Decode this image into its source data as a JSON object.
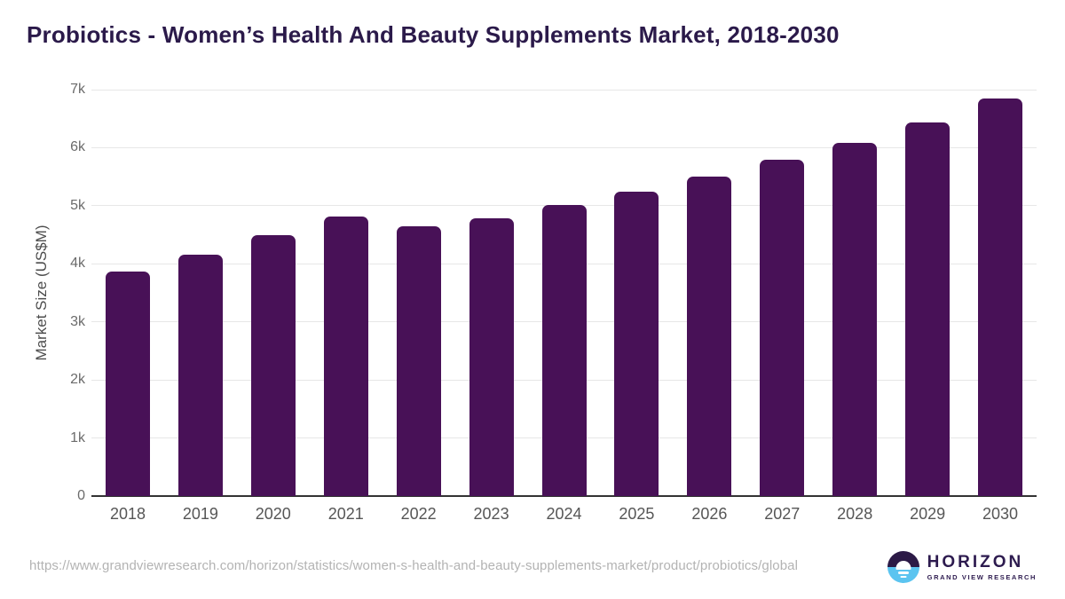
{
  "title": "Probiotics - Women’s Health And Beauty Supplements Market, 2018-2030",
  "colors": {
    "bar": "#481157",
    "title_text": "#2b1a4a",
    "gridline": "#e7e7e7",
    "axis_line": "#333333",
    "tick_label": "#6b6b6b",
    "url_text": "#b3b3b3",
    "logo_purple": "#2d1b4f",
    "logo_blue": "#5bc4f0"
  },
  "chart_data": {
    "type": "bar",
    "title": "Probiotics - Women’s Health And Beauty Supplements Market, 2018-2030",
    "categories": [
      "2018",
      "2019",
      "2020",
      "2021",
      "2022",
      "2023",
      "2024",
      "2025",
      "2026",
      "2027",
      "2028",
      "2029",
      "2030"
    ],
    "values": [
      3860,
      4150,
      4490,
      4810,
      4640,
      4790,
      5010,
      5240,
      5500,
      5790,
      6090,
      6440,
      6850
    ],
    "xlabel": "",
    "ylabel": "Market Size (US$M)",
    "ylim": [
      0,
      7000
    ],
    "ytick_labels": [
      "0",
      "1k",
      "2k",
      "3k",
      "4k",
      "5k",
      "6k",
      "7k"
    ],
    "grid": true,
    "legend": false,
    "bar_color": "#481157"
  },
  "footer": {
    "url": "https://www.grandviewresearch.com/horizon/statistics/women-s-health-and-beauty-supplements-market/product/probiotics/global",
    "logo": {
      "name": "HORIZON",
      "subtitle": "GRAND VIEW RESEARCH"
    }
  }
}
